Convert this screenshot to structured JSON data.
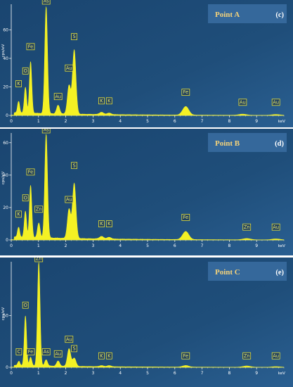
{
  "colors": {
    "plot_bg": "#1f4e7a",
    "spectrum": "#f4f124",
    "label_box": "#1d3d5f",
    "label_border": "#e8e23a",
    "point_box": "#35689b",
    "point_text": "#f5d37a"
  },
  "chart_data": [
    {
      "type": "area",
      "point_label": "Point A",
      "panel_letter": "(c)",
      "ylabel": "cps/eV",
      "xlabel": "keV",
      "xlim": [
        0,
        10
      ],
      "ylim": [
        0,
        78
      ],
      "x_ticks": [
        0,
        1,
        2,
        3,
        4,
        5,
        6,
        7,
        8,
        9
      ],
      "y_ticks": [
        0,
        20,
        40,
        60
      ],
      "peaks": [
        {
          "element": "K",
          "energy": 0.27,
          "height": 8,
          "label_y": 20
        },
        {
          "element": "O",
          "energy": 0.52,
          "height": 18,
          "label_y": 29
        },
        {
          "element": "Fe",
          "energy": 0.71,
          "height": 36,
          "label_y": 46
        },
        {
          "element": "As",
          "energy": 1.28,
          "height": 75,
          "label_y": 78
        },
        {
          "element": "Au",
          "energy": 1.72,
          "height": 6,
          "label_y": 11
        },
        {
          "element": "Au",
          "energy": 2.12,
          "height": 20,
          "label_y": 31
        },
        {
          "element": "S",
          "energy": 2.31,
          "height": 45,
          "label_y": 53
        },
        {
          "element": "K",
          "energy": 3.31,
          "height": 1.5,
          "label_y": 8
        },
        {
          "element": "K",
          "energy": 3.59,
          "height": 1,
          "label_y": 8
        },
        {
          "element": "Fe",
          "energy": 6.4,
          "height": 6,
          "label_y": 14
        },
        {
          "element": "Au",
          "energy": 8.49,
          "height": 0.8,
          "label_y": 7
        },
        {
          "element": "Au",
          "energy": 9.71,
          "height": 0.6,
          "label_y": 7
        }
      ]
    },
    {
      "type": "area",
      "point_label": "Point B",
      "panel_letter": "(d)",
      "ylabel": "cps/eV",
      "xlabel": "keV",
      "xlim": [
        0,
        10
      ],
      "ylim": [
        0,
        66
      ],
      "x_ticks": [
        0,
        1,
        2,
        3,
        4,
        5,
        6,
        7,
        8,
        9
      ],
      "y_ticks": [
        0,
        20,
        40,
        60
      ],
      "peaks": [
        {
          "element": "K",
          "energy": 0.27,
          "height": 6,
          "label_y": 14
        },
        {
          "element": "O",
          "energy": 0.52,
          "height": 16,
          "label_y": 24
        },
        {
          "element": "Fe",
          "energy": 0.71,
          "height": 32,
          "label_y": 40
        },
        {
          "element": "Zn",
          "energy": 1.01,
          "height": 9,
          "label_y": 17
        },
        {
          "element": "As",
          "energy": 1.28,
          "height": 64,
          "label_y": 66
        },
        {
          "element": "Au",
          "energy": 2.12,
          "height": 18,
          "label_y": 23
        },
        {
          "element": "S",
          "energy": 2.31,
          "height": 34,
          "label_y": 44
        },
        {
          "element": "K",
          "energy": 3.31,
          "height": 1.5,
          "label_y": 8
        },
        {
          "element": "K",
          "energy": 3.59,
          "height": 1,
          "label_y": 8
        },
        {
          "element": "Fe",
          "energy": 6.4,
          "height": 5,
          "label_y": 12
        },
        {
          "element": "Zn",
          "energy": 8.64,
          "height": 0.8,
          "label_y": 6
        },
        {
          "element": "Au",
          "energy": 9.71,
          "height": 0.6,
          "label_y": 6
        }
      ]
    },
    {
      "type": "area",
      "point_label": "Point C",
      "panel_letter": "(e)",
      "ylabel": "cps/eV",
      "xlabel": "keV",
      "xlim": [
        0,
        10
      ],
      "ylim": [
        0,
        102
      ],
      "x_ticks": [
        0,
        1,
        2,
        3,
        4,
        5,
        6,
        7,
        8,
        9
      ],
      "y_ticks": [
        0,
        50
      ],
      "peaks": [
        {
          "element": "C",
          "energy": 0.28,
          "height": 4,
          "label_y": 12
        },
        {
          "element": "O",
          "energy": 0.52,
          "height": 48,
          "label_y": 57
        },
        {
          "element": "Fe",
          "energy": 0.71,
          "height": 8,
          "label_y": 12
        },
        {
          "element": "Zn",
          "energy": 1.01,
          "height": 100,
          "label_y": 102
        },
        {
          "element": "As",
          "energy": 1.28,
          "height": 6,
          "label_y": 12
        },
        {
          "element": "Au",
          "energy": 1.72,
          "height": 5,
          "label_y": 10
        },
        {
          "element": "Au",
          "energy": 2.12,
          "height": 17,
          "label_y": 24
        },
        {
          "element": "S",
          "energy": 2.31,
          "height": 8,
          "label_y": 15
        },
        {
          "element": "K",
          "energy": 3.31,
          "height": 1,
          "label_y": 8
        },
        {
          "element": "K",
          "energy": 3.59,
          "height": 1,
          "label_y": 8
        },
        {
          "element": "Fe",
          "energy": 6.4,
          "height": 1.5,
          "label_y": 8
        },
        {
          "element": "Zn",
          "energy": 8.64,
          "height": 1.2,
          "label_y": 8
        },
        {
          "element": "Au",
          "energy": 9.71,
          "height": 0.6,
          "label_y": 8
        }
      ]
    }
  ]
}
